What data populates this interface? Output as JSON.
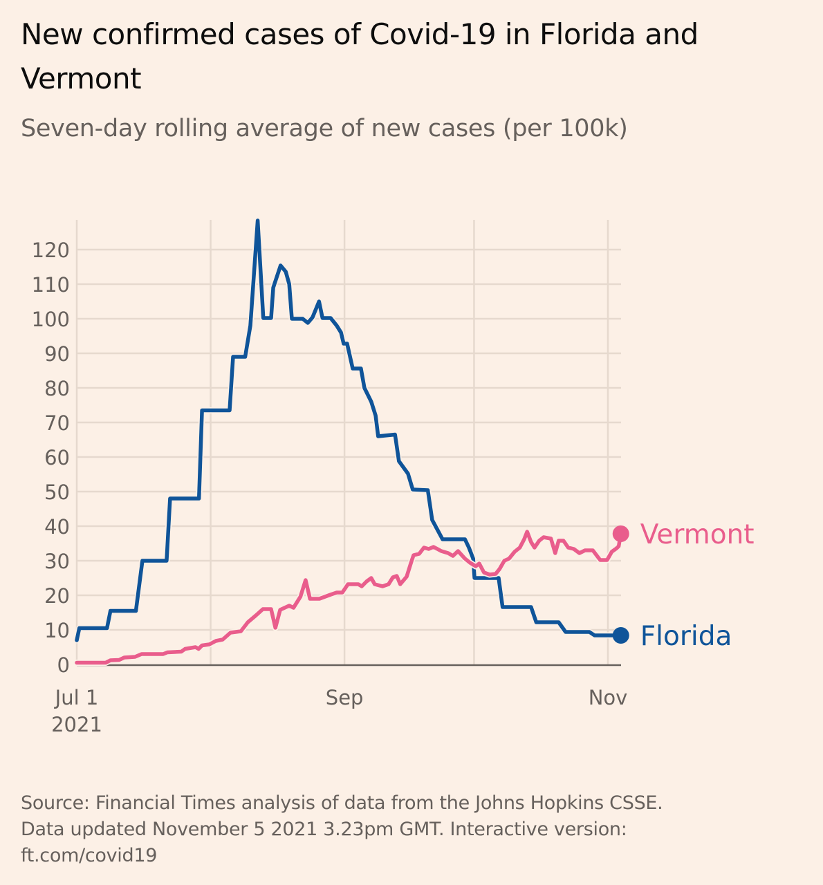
{
  "chart_data": {
    "type": "line",
    "title": "New confirmed cases of Covid-19 in Florida and Vermont",
    "subtitle": "Seven-day rolling average of new cases (per 100k)",
    "xlabel": "",
    "ylabel": "",
    "x_unit": "days since Jul 1 2021",
    "xlim": [
      0,
      126
    ],
    "ylim": [
      0,
      128
    ],
    "y_ticks": [
      0,
      10,
      20,
      30,
      40,
      50,
      60,
      70,
      80,
      90,
      100,
      110,
      120
    ],
    "x_ticks": [
      {
        "day": 0,
        "label": "Jul 1",
        "sublabel": "2021",
        "show_label": true
      },
      {
        "day": 31,
        "label": "",
        "sublabel": "",
        "show_label": false
      },
      {
        "day": 62,
        "label": "Sep",
        "sublabel": "",
        "show_label": true
      },
      {
        "day": 92,
        "label": "",
        "sublabel": "",
        "show_label": false
      },
      {
        "day": 123,
        "label": "Nov",
        "sublabel": "",
        "show_label": true
      }
    ],
    "grid": true,
    "legend": "direct-labels-right",
    "series": [
      {
        "name": "Florida",
        "color": "#0f5499",
        "points": [
          [
            0,
            7
          ],
          [
            0.6,
            10.5
          ],
          [
            7,
            10.5
          ],
          [
            7.8,
            15.5
          ],
          [
            13.7,
            15.5
          ],
          [
            15.2,
            30
          ],
          [
            20.8,
            30
          ],
          [
            21.6,
            48
          ],
          [
            28.3,
            48
          ],
          [
            29,
            73.5
          ],
          [
            35.4,
            73.5
          ],
          [
            36.2,
            89
          ],
          [
            39,
            89
          ],
          [
            40.2,
            98
          ],
          [
            41.9,
            128.4
          ],
          [
            43.2,
            100.2
          ],
          [
            45,
            100.2
          ],
          [
            45.5,
            109
          ],
          [
            47.2,
            115.4
          ],
          [
            48.4,
            113.6
          ],
          [
            49.2,
            110
          ],
          [
            49.8,
            100
          ],
          [
            52.3,
            100
          ],
          [
            53.5,
            98.8
          ],
          [
            54.6,
            100.4
          ],
          [
            56.1,
            105
          ],
          [
            56.9,
            100.2
          ],
          [
            58.8,
            100.2
          ],
          [
            60.2,
            98
          ],
          [
            61.2,
            96
          ],
          [
            61.8,
            92.8
          ],
          [
            62.6,
            92.8
          ],
          [
            63.9,
            85.6
          ],
          [
            65.8,
            85.6
          ],
          [
            66.6,
            80
          ],
          [
            68.2,
            76
          ],
          [
            69.2,
            72
          ],
          [
            69.8,
            66
          ],
          [
            73.7,
            66.5
          ],
          [
            74.6,
            58.8
          ],
          [
            76.7,
            55.2
          ],
          [
            77.8,
            50.6
          ],
          [
            81.3,
            50.4
          ],
          [
            82.3,
            41.8
          ],
          [
            84.7,
            36.2
          ],
          [
            89.9,
            36.2
          ],
          [
            90.8,
            33.8
          ],
          [
            91.8,
            30.6
          ],
          [
            92.1,
            25
          ],
          [
            97.7,
            25
          ],
          [
            98.6,
            16.6
          ],
          [
            105.2,
            16.6
          ],
          [
            106.4,
            12.2
          ],
          [
            111.6,
            12.2
          ],
          [
            113.2,
            9.4
          ],
          [
            118.7,
            9.4
          ],
          [
            119.9,
            8.4
          ],
          [
            126,
            8.4
          ]
        ]
      },
      {
        "name": "Vermont",
        "color": "#e95d8c",
        "points": [
          [
            0,
            0.5
          ],
          [
            6.7,
            0.5
          ],
          [
            7.8,
            1.2
          ],
          [
            9.8,
            1.3
          ],
          [
            11,
            2
          ],
          [
            13.5,
            2.2
          ],
          [
            15,
            3
          ],
          [
            20,
            3
          ],
          [
            21,
            3.5
          ],
          [
            24.2,
            3.7
          ],
          [
            25.1,
            4.5
          ],
          [
            27.5,
            5
          ],
          [
            28.2,
            4.5
          ],
          [
            29,
            5.5
          ],
          [
            30.7,
            5.8
          ],
          [
            32.2,
            6.8
          ],
          [
            33.8,
            7.2
          ],
          [
            35.6,
            9.2
          ],
          [
            38,
            9.6
          ],
          [
            39.6,
            12.2
          ],
          [
            41.5,
            14.2
          ],
          [
            43.1,
            16
          ],
          [
            45,
            16
          ],
          [
            46,
            10.6
          ],
          [
            47.1,
            15.8
          ],
          [
            49.2,
            17
          ],
          [
            50.2,
            16.4
          ],
          [
            51.8,
            19.6
          ],
          [
            53,
            24.4
          ],
          [
            54,
            19
          ],
          [
            56.2,
            19
          ],
          [
            58.8,
            20.2
          ],
          [
            60.2,
            20.8
          ],
          [
            61.5,
            20.8
          ],
          [
            62.8,
            23.2
          ],
          [
            65.2,
            23.2
          ],
          [
            66,
            22.6
          ],
          [
            67.1,
            24
          ],
          [
            68.2,
            25
          ],
          [
            69,
            23.2
          ],
          [
            70.8,
            22.6
          ],
          [
            72.2,
            23.2
          ],
          [
            73.2,
            25.2
          ],
          [
            74.1,
            25.6
          ],
          [
            74.9,
            23.2
          ],
          [
            76.4,
            25.4
          ],
          [
            77.5,
            29.8
          ],
          [
            78,
            31.6
          ],
          [
            79.3,
            32
          ],
          [
            80.4,
            33.8
          ],
          [
            81.5,
            33.4
          ],
          [
            82.6,
            34
          ],
          [
            84.4,
            32.8
          ],
          [
            86,
            32.2
          ],
          [
            87.1,
            31.4
          ],
          [
            88.3,
            32.8
          ],
          [
            89.9,
            30.6
          ],
          [
            91.1,
            29.4
          ],
          [
            92.4,
            28.4
          ],
          [
            93.2,
            29.2
          ],
          [
            94.3,
            26.6
          ],
          [
            95.6,
            26
          ],
          [
            97,
            26.2
          ],
          [
            97.9,
            27.6
          ],
          [
            99,
            30
          ],
          [
            100.1,
            30.6
          ],
          [
            101.4,
            32.6
          ],
          [
            102.6,
            33.8
          ],
          [
            103.6,
            36.2
          ],
          [
            104.3,
            38.4
          ],
          [
            105.2,
            35.4
          ],
          [
            106,
            33.8
          ],
          [
            107.1,
            35.8
          ],
          [
            108.1,
            36.8
          ],
          [
            109.8,
            36.4
          ],
          [
            110.8,
            32.2
          ],
          [
            111.6,
            35.8
          ],
          [
            112.7,
            35.8
          ],
          [
            113.8,
            33.8
          ],
          [
            115.1,
            33.4
          ],
          [
            116.4,
            32.2
          ],
          [
            117.7,
            33
          ],
          [
            119.5,
            33
          ],
          [
            121.2,
            30.2
          ],
          [
            122.8,
            30.2
          ],
          [
            123.9,
            32.6
          ],
          [
            125,
            33.6
          ],
          [
            125.5,
            34.2
          ],
          [
            126,
            37.8
          ]
        ]
      }
    ],
    "source": [
      "Source: Financial Times analysis of data from the Johns Hopkins CSSE.",
      "Data updated November 5 2021 3.23pm GMT. Interactive version:",
      "ft.com/covid19"
    ]
  },
  "colors": {
    "background": "#fcf0e6",
    "grid": "#e6d9ce",
    "axis": "#66605c",
    "text": "#66605c"
  }
}
